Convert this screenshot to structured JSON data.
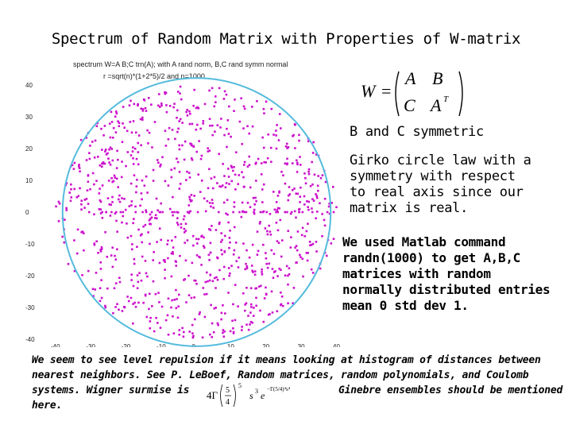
{
  "slide": {
    "title": "Spectrum of Random Matrix with Properties of W-matrix",
    "side_text_1": "B and C symmetric",
    "side_text_2_lines": [
      "Girko circle law with a",
      "symmetry with respect",
      "to real axis since our",
      "matrix is real."
    ],
    "side_text_3_lines": [
      "We used Matlab command",
      "randn(1000)  to get A,B,C",
      "matrices with random",
      "normally distributed entries",
      "mean 0 std dev 1."
    ],
    "bottom_lines": [
      "We seem to see level repulsion if it means looking at histogram of distances between",
      "nearest neighbors. See P. LeBoef, Random matrices, random polynomials, and Coulomb",
      "systems. Wigner surmise is",
      "Ginebre ensembles should be mentioned",
      "here."
    ],
    "matrix_formula": {
      "lhs": "W",
      "a": "A",
      "b": "B",
      "c": "C",
      "d": "A",
      "d_sup": "T"
    },
    "wigner_formula": "4Γ(5/4)^5 s^3 e^-(Γ(5/4) s)^4 ... "
  },
  "plot": {
    "title_line1": "spectrum W=A B;C trn(A); with A rand norm, B,C rand symm normal",
    "title_line2": "r =sqrt(n)*(1+2*5)/2  and n=1000",
    "y_ticks": [
      "40",
      "30",
      "20",
      "10",
      "0",
      "-10",
      "-20",
      "-30",
      "-40"
    ],
    "x_ticks": [
      "-40",
      "-30",
      "-20",
      "-10",
      "0",
      "10",
      "20",
      "30",
      "40"
    ],
    "point_color": "#cc11cc",
    "circle_color": "#55bbdd"
  },
  "chart_data": {
    "type": "scatter",
    "title": "spectrum W=A B;C trn(A); with A rand norm, B,C rand symm normal",
    "xlim": [
      -40,
      40
    ],
    "ylim": [
      -40,
      40
    ],
    "circle_radius": 40,
    "grid": false
  }
}
